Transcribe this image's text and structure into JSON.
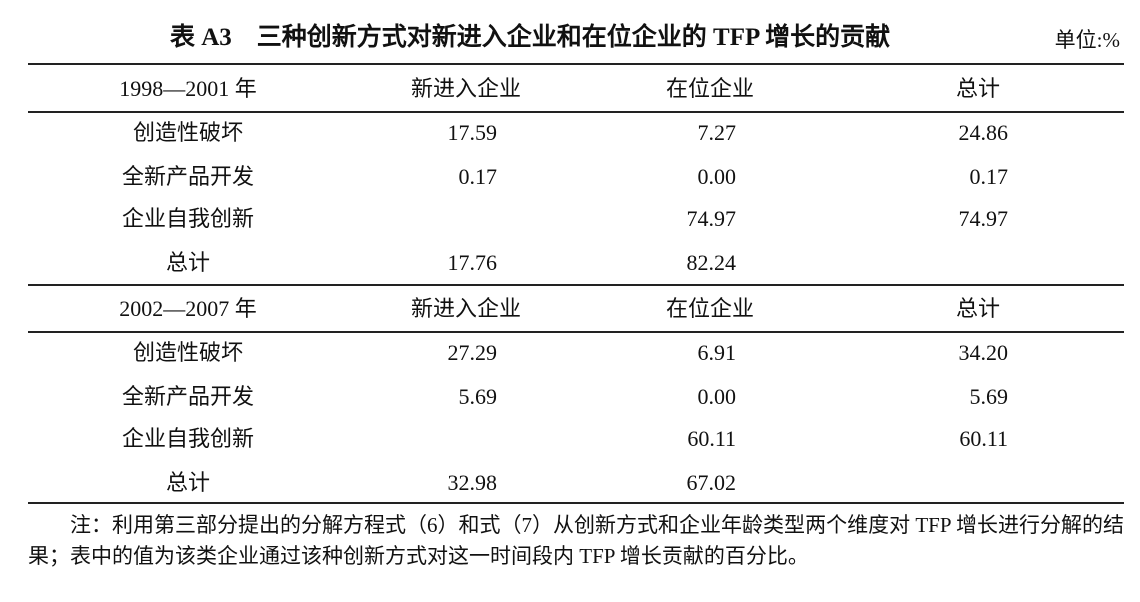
{
  "title": "表 A3　三种创新方式对新进入企业和在位企业的 TFP 增长的贡献",
  "unit": "单位:%",
  "sections": [
    {
      "header": [
        "1998—2001 年",
        "新进入企业",
        "在位企业",
        "总计"
      ],
      "rows": [
        [
          "创造性破坏",
          "17.59",
          "7.27",
          "24.86"
        ],
        [
          "全新产品开发",
          "0.17",
          "0.00",
          "0.17"
        ],
        [
          "企业自我创新",
          null,
          "74.97",
          "74.97"
        ],
        [
          "总计",
          "17.76",
          "82.24",
          null
        ]
      ]
    },
    {
      "header": [
        "2002—2007 年",
        "新进入企业",
        "在位企业",
        "总计"
      ],
      "rows": [
        [
          "创造性破坏",
          "27.29",
          "6.91",
          "34.20"
        ],
        [
          "全新产品开发",
          "5.69",
          "0.00",
          "5.69"
        ],
        [
          "企业自我创新",
          null,
          "60.11",
          "60.11"
        ],
        [
          "总计",
          "32.98",
          "67.02",
          null
        ]
      ]
    }
  ],
  "note": "注：利用第三部分提出的分解方程式（6）和式（7）从创新方式和企业年龄类型两个维度对 TFP 增长进行分解的结果；表中的值为该类企业通过该种创新方式对这一时间段内 TFP 增长贡献的百分比。"
}
